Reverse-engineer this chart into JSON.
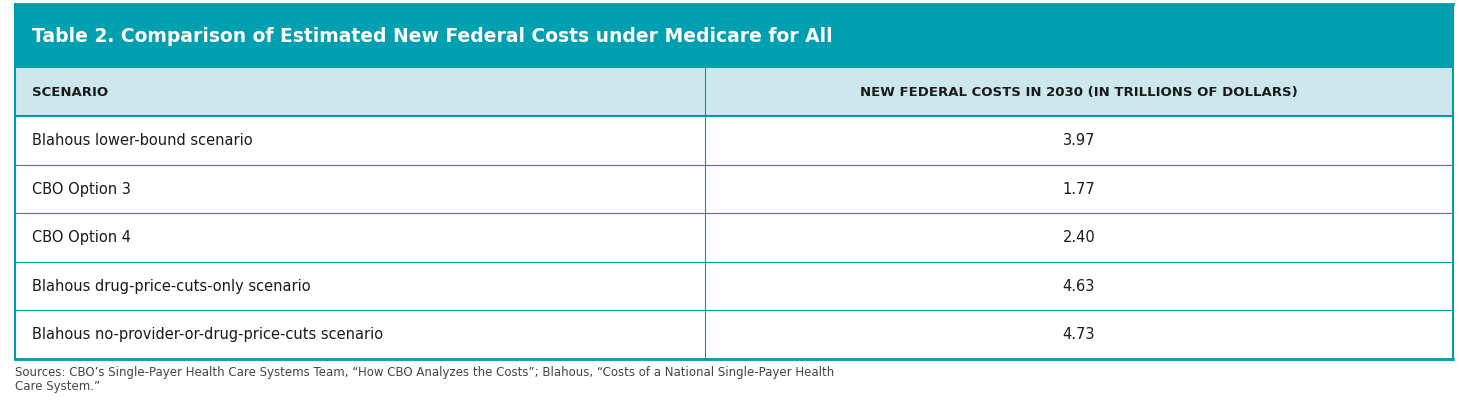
{
  "title": "Table 2. Comparison of Estimated New Federal Costs under Medicare for All",
  "col1_header": "SCENARIO",
  "col2_header": "NEW FEDERAL COSTS IN 2030 (IN TRILLIONS OF DOLLARS)",
  "rows": [
    [
      "Blahous lower-bound scenario",
      "3.97"
    ],
    [
      "CBO Option 3",
      "1.77"
    ],
    [
      "CBO Option 4",
      "2.40"
    ],
    [
      "Blahous drug-price-cuts-only scenario",
      "4.63"
    ],
    [
      "Blahous no-provider-or-drug-price-cuts scenario",
      "4.73"
    ]
  ],
  "footer_lines": [
    "Sources: CBO’s Single-Payer Health Care Systems Team, “How CBO Analyzes the Costs”; Blahous, “Costs of a National Single-Payer Health",
    "Care System.”"
  ],
  "title_bg_color": "#00A0B0",
  "title_text_color": "#FFFFFF",
  "header_bg_color": "#CCE8EC",
  "header_text_color": "#1a1a1a",
  "row_bg_color": "#FFFFFF",
  "divider_color": "#009BAA",
  "border_color": "#009BAA",
  "col_split": 0.47,
  "footer_text_color": "#444444",
  "row_text_color": "#1a1a1a"
}
